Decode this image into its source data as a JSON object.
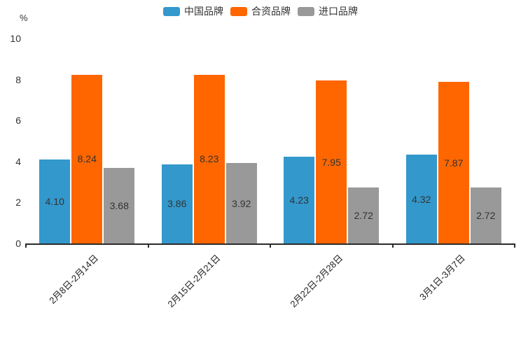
{
  "chart_data": {
    "type": "bar",
    "title": "",
    "categories": [
      "2月8日-2月14日",
      "2月15日-2月21日",
      "2月22日-2月28日",
      "3月1日-3月7日"
    ],
    "series": [
      {
        "name": "中国品牌",
        "color": "#3398cc",
        "values": [
          4.1,
          3.86,
          4.23,
          4.32
        ],
        "value_labels": [
          "4.10",
          "3.86",
          "4.23",
          "4.32"
        ]
      },
      {
        "name": "合资品牌",
        "color": "#ff6600",
        "values": [
          8.24,
          8.23,
          7.95,
          7.87
        ],
        "value_labels": [
          "8.24",
          "8.23",
          "7.95",
          "7.87"
        ]
      },
      {
        "name": "进口品牌",
        "color": "#999999",
        "values": [
          3.68,
          3.92,
          2.72,
          2.72
        ],
        "value_labels": [
          "3.68",
          "3.92",
          "2.72",
          "2.72"
        ]
      }
    ],
    "xlabel": "",
    "ylabel": "%",
    "ylim": [
      0,
      10
    ],
    "yticks": [
      0,
      2,
      4,
      6,
      8,
      10
    ],
    "legend_position": "top-center",
    "grid": false,
    "bar_label_position": "inside-center",
    "x_label_rotation": 45,
    "axis_color": "#2b2b2b",
    "label_text_color": "#333333"
  }
}
